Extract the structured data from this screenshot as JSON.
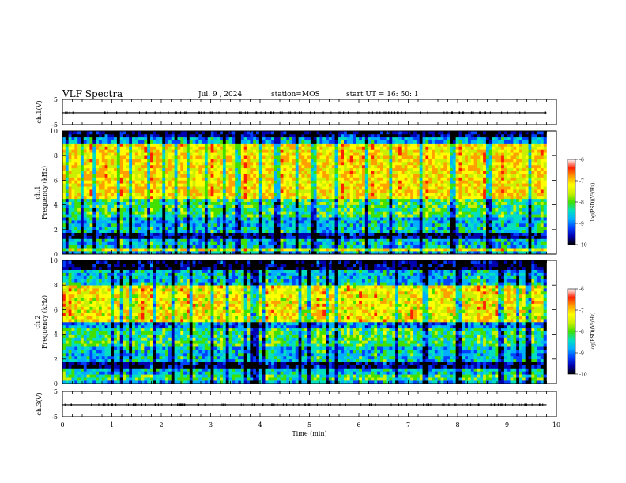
{
  "header": {
    "title": "VLF Spectra",
    "date": "Jul. 9 , 2024",
    "station": "station=MOS",
    "start_ut": "start UT = 16: 50: 1"
  },
  "colorscale": {
    "stops": [
      "#000000",
      "#0000b0",
      "#0040ff",
      "#00b0ff",
      "#00e0c0",
      "#40e000",
      "#c8f000",
      "#ffff00",
      "#ffa000",
      "#ff2000",
      "#ffffff"
    ]
  },
  "chart_data": [
    {
      "type": "line",
      "panel": "ch1-waveform",
      "ylabel": "ch.1(V)",
      "ylim": [
        -5,
        5
      ],
      "yticks": [
        5,
        -5
      ],
      "xlim": [
        0,
        10
      ],
      "note_values": "waveform approximately flat near -0.3 V with small spikes",
      "x": [
        0,
        1,
        2,
        3,
        4,
        5,
        6,
        7,
        8,
        9,
        9.8
      ],
      "y": [
        -0.3,
        -0.3,
        -0.3,
        -0.3,
        -0.3,
        -0.3,
        -0.3,
        -0.3,
        -0.3,
        -0.3,
        -0.3
      ]
    },
    {
      "type": "heatmap",
      "panel": "ch1-spectrogram",
      "ylabel": "ch.1 Frequency (kHz)",
      "ylim": [
        0,
        10
      ],
      "yticks": [
        0,
        2,
        4,
        6,
        8,
        10
      ],
      "xlim": [
        0,
        10
      ],
      "data_xmax": 9.8,
      "colorbar_label": "log(PSD)(V²/Hz)",
      "colorbar_range": [
        -10,
        -6
      ],
      "colorbar_ticks": [
        -6,
        -7,
        -8,
        -9,
        -10
      ],
      "bands": [
        {
          "fmin": 0.2,
          "fmax": 0.6,
          "logpsd": -7.2
        },
        {
          "fmin": 1.3,
          "fmax": 1.7,
          "logpsd": -9.5
        },
        {
          "fmin": 4.5,
          "fmax": 9.0,
          "logpsd": -7.0
        },
        {
          "fmin": 9.5,
          "fmax": 10.0,
          "logpsd": -9.6
        }
      ]
    },
    {
      "type": "heatmap",
      "panel": "ch2-spectrogram",
      "ylabel": "ch.2 Frequency (kHz)",
      "ylim": [
        0,
        10
      ],
      "yticks": [
        0,
        2,
        4,
        6,
        8,
        10
      ],
      "xlim": [
        0,
        10
      ],
      "data_xmax": 9.8,
      "colorbar_label": "log(PSD)(V²/Hz)",
      "colorbar_range": [
        -10,
        -6
      ],
      "colorbar_ticks": [
        -6,
        -7,
        -8,
        -9,
        -10
      ],
      "bands": [
        {
          "fmin": 0.2,
          "fmax": 0.8,
          "logpsd": -8.0
        },
        {
          "fmin": 1.3,
          "fmax": 1.8,
          "logpsd": -9.6
        },
        {
          "fmin": 5.0,
          "fmax": 8.0,
          "logpsd": -7.1
        },
        {
          "fmin": 9.2,
          "fmax": 10.0,
          "logpsd": -9.7
        }
      ]
    },
    {
      "type": "line",
      "panel": "ch3-waveform",
      "ylabel": "ch.3(V)",
      "ylim": [
        -5,
        5
      ],
      "yticks": [
        5,
        -5
      ],
      "xlim": [
        0,
        10
      ],
      "xlabel": "Time (min)",
      "xticks": [
        0,
        1,
        2,
        3,
        4,
        5,
        6,
        7,
        8,
        9,
        10
      ],
      "x": [
        0,
        1,
        2,
        3,
        4,
        5,
        6,
        7,
        8,
        9,
        9.8
      ],
      "y": [
        -0.3,
        -0.3,
        -0.3,
        -0.3,
        -0.3,
        -0.3,
        -0.3,
        -0.3,
        -0.3,
        -0.3,
        -0.3
      ]
    }
  ]
}
